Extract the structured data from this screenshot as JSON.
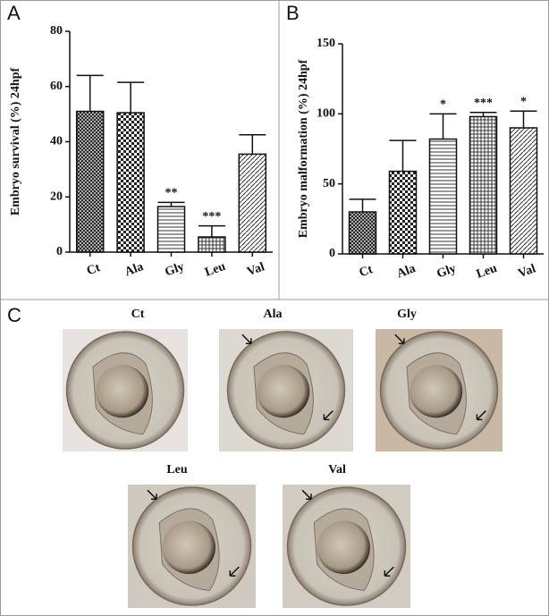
{
  "panels": {
    "a": "A",
    "b": "B",
    "c": "C"
  },
  "chart_data": [
    {
      "type": "bar",
      "y_label": "Embryo survival (%) 24hpf",
      "categories": [
        "Ct",
        "Ala",
        "Gly",
        "Leu",
        "Val"
      ],
      "values": [
        51,
        50.5,
        16.5,
        5.5,
        35.5
      ],
      "errors": [
        13,
        11,
        1.5,
        4,
        7
      ],
      "annotations": [
        null,
        null,
        "**",
        "***",
        null
      ],
      "ylim": [
        0,
        80
      ],
      "yticks": [
        0,
        20,
        40,
        60,
        80
      ]
    },
    {
      "type": "bar",
      "y_label": "Embryo malformation (%) 24hpf",
      "categories": [
        "Ct",
        "Ala",
        "Gly",
        "Leu",
        "Val"
      ],
      "values": [
        30,
        59,
        82,
        98,
        90
      ],
      "errors": [
        9,
        22,
        18,
        3,
        12
      ],
      "annotations": [
        null,
        null,
        "*",
        "***",
        "*"
      ],
      "ylim": [
        0,
        150
      ],
      "yticks": [
        0,
        50,
        100,
        150
      ]
    }
  ],
  "embryos": [
    {
      "label": "Ct"
    },
    {
      "label": "Ala"
    },
    {
      "label": "Gly"
    },
    {
      "label": "Leu"
    },
    {
      "label": "Val"
    }
  ]
}
